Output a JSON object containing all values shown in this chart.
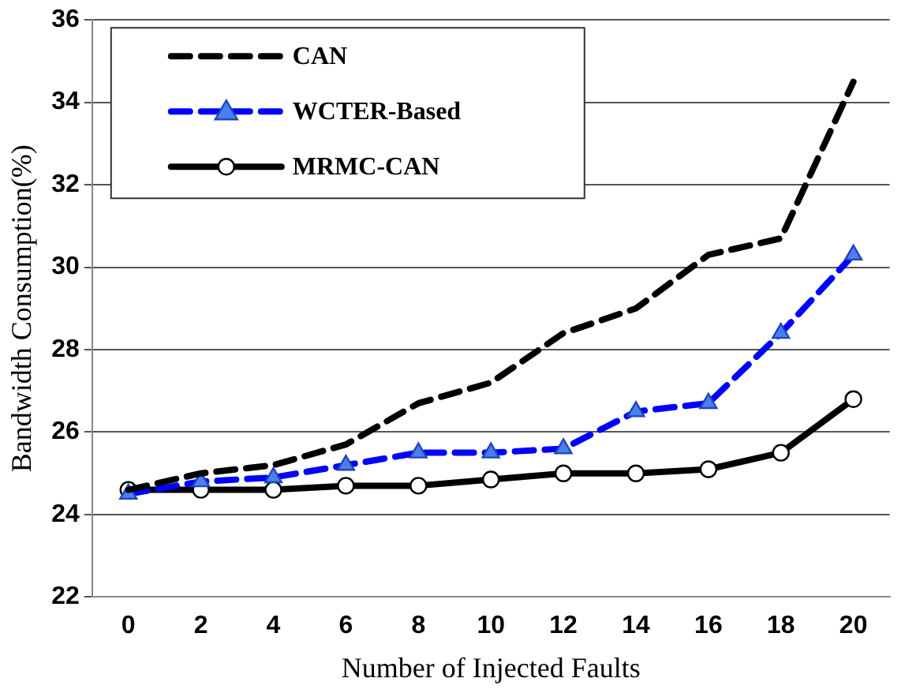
{
  "chart_data": {
    "type": "line",
    "xlabel": "Number of Injected Faults",
    "ylabel": "Bandwidth Consumption(%)",
    "categories": [
      "0",
      "2",
      "4",
      "6",
      "8",
      "10",
      "12",
      "14",
      "16",
      "18",
      "20"
    ],
    "series": [
      {
        "name": "CAN",
        "color": "#000000",
        "line_style": "dashed",
        "marker": "none",
        "values": [
          24.6,
          25.0,
          25.2,
          25.7,
          26.7,
          27.2,
          28.4,
          29.0,
          30.3,
          30.7,
          34.5
        ]
      },
      {
        "name": "WCTER-Based",
        "color": "#0000ff",
        "line_style": "dashed",
        "marker": "triangle",
        "values": [
          24.5,
          24.8,
          24.9,
          25.2,
          25.5,
          25.5,
          25.6,
          26.5,
          26.7,
          28.4,
          30.3
        ]
      },
      {
        "name": "MRMC-CAN",
        "color": "#000000",
        "line_style": "solid",
        "marker": "circle",
        "values": [
          24.6,
          24.6,
          24.6,
          24.7,
          24.7,
          24.85,
          25.0,
          25.0,
          25.1,
          25.5,
          26.8
        ]
      }
    ],
    "ylim": [
      22,
      36
    ],
    "yticks": [
      22,
      24,
      26,
      28,
      30,
      32,
      34,
      36
    ],
    "grid": "y",
    "legend": "top left"
  }
}
